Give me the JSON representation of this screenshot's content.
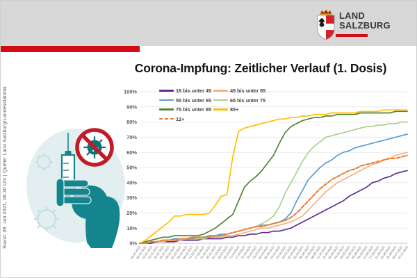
{
  "header": {
    "band_color": "#d7d7d7",
    "brand_red": "#d30b12",
    "logo": {
      "line1": "LAND",
      "line2": "SALZBURG"
    }
  },
  "side_caption": "Stand: 09. Juli 2021, 08.30 Uhr  |  Quelle: Land Salzburg/Landesstatistik",
  "title": "Corona-Impfung: Zeitlicher Verlauf (1. Dosis)",
  "illustration": {
    "description": "hand holding syringe with no-virus prohibition sign",
    "teal": "#15858d",
    "light_teal": "#e2eeef",
    "sign_red": "#c21b26"
  },
  "chart_data": {
    "type": "line",
    "title": "Corona-Impfung: Zeitlicher Verlauf (1. Dosis)",
    "ylabel": "",
    "xlabel": "",
    "ylim": [
      0,
      100
    ],
    "grid": true,
    "legend_position": "top-left-inside",
    "yticks": [
      "0%",
      "10%",
      "20%",
      "30%",
      "40%",
      "50%",
      "60%",
      "70%",
      "80%",
      "90%",
      "100%"
    ],
    "x": [
      "04.01.2021",
      "08.01.2021",
      "12.01.2021",
      "16.01.2021",
      "20.01.2021",
      "24.01.2021",
      "28.01.2021",
      "01.02.2021",
      "05.02.2021",
      "09.02.2021",
      "13.02.2021",
      "17.02.2021",
      "21.02.2021",
      "25.02.2021",
      "01.03.2021",
      "05.03.2021",
      "09.03.2021",
      "13.03.2021",
      "17.03.2021",
      "21.03.2021",
      "25.03.2021",
      "29.03.2021",
      "02.04.2021",
      "06.04.2021",
      "10.04.2021",
      "14.04.2021",
      "18.04.2021",
      "22.04.2021",
      "26.04.2021",
      "30.04.2021",
      "04.05.2021",
      "08.05.2021",
      "12.05.2021",
      "16.05.2021",
      "20.05.2021",
      "24.05.2021",
      "28.05.2021",
      "01.06.2021",
      "05.06.2021",
      "09.06.2021",
      "13.06.2021",
      "17.06.2021",
      "21.06.2021",
      "25.06.2021",
      "29.06.2021",
      "03.07.2021",
      "07.07.2021"
    ],
    "series": [
      {
        "name": "16 bis unter 45",
        "color": "#5e2d91",
        "dash": false,
        "values": [
          0,
          0,
          0,
          1,
          1,
          1,
          1,
          2,
          2,
          2,
          2,
          3,
          3,
          3,
          3,
          4,
          4,
          5,
          5,
          6,
          6,
          7,
          7,
          8,
          8,
          9,
          10,
          12,
          14,
          16,
          18,
          20,
          22,
          24,
          26,
          28,
          31,
          33,
          35,
          37,
          40,
          41,
          43,
          44,
          46,
          47,
          48
        ]
      },
      {
        "name": "45 bis unter 55",
        "color": "#f4b183",
        "dash": false,
        "values": [
          0,
          0,
          1,
          1,
          1,
          2,
          2,
          2,
          3,
          3,
          3,
          3,
          4,
          4,
          4,
          5,
          5,
          6,
          7,
          8,
          9,
          10,
          10,
          11,
          12,
          13,
          14,
          16,
          18,
          22,
          26,
          30,
          34,
          37,
          40,
          42,
          44,
          46,
          48,
          50,
          52,
          53,
          55,
          56,
          58,
          59,
          60
        ]
      },
      {
        "name": "55 bis unter 65",
        "color": "#5b9bd5",
        "dash": false,
        "values": [
          0,
          0,
          1,
          1,
          2,
          2,
          3,
          3,
          3,
          4,
          4,
          4,
          5,
          5,
          6,
          6,
          7,
          8,
          9,
          10,
          11,
          12,
          12,
          13,
          14,
          16,
          20,
          28,
          35,
          42,
          46,
          50,
          53,
          55,
          58,
          60,
          61,
          63,
          64,
          65,
          66,
          67,
          68,
          69,
          70,
          71,
          72
        ]
      },
      {
        "name": "65 bis unter 75",
        "color": "#a9d18e",
        "dash": false,
        "values": [
          0,
          0,
          1,
          1,
          2,
          2,
          2,
          3,
          3,
          3,
          3,
          3,
          4,
          4,
          5,
          6,
          7,
          8,
          9,
          10,
          11,
          13,
          15,
          18,
          24,
          33,
          40,
          47,
          54,
          60,
          64,
          67,
          70,
          71,
          72,
          73,
          74,
          75,
          76,
          77,
          77,
          78,
          78,
          79,
          79,
          80,
          80
        ]
      },
      {
        "name": "75 bis unter 85",
        "color": "#548235",
        "dash": false,
        "values": [
          0,
          1,
          2,
          3,
          4,
          4,
          5,
          5,
          5,
          5,
          5,
          6,
          8,
          10,
          13,
          16,
          19,
          28,
          37,
          41,
          44,
          48,
          53,
          58,
          66,
          73,
          77,
          79,
          81,
          82,
          83,
          83,
          84,
          84,
          85,
          85,
          85,
          85,
          86,
          86,
          86,
          86,
          86,
          86,
          87,
          87,
          87
        ]
      },
      {
        "name": "85+",
        "color": "#ffc000",
        "dash": false,
        "values": [
          0,
          2,
          5,
          8,
          11,
          14,
          18,
          18,
          19,
          19,
          19,
          19,
          20,
          25,
          31,
          32,
          57,
          74,
          76,
          77,
          78,
          79,
          80,
          81,
          82,
          82,
          83,
          83,
          84,
          84,
          85,
          85,
          85,
          86,
          86,
          86,
          86,
          86,
          87,
          87,
          87,
          87,
          88,
          88,
          88,
          88,
          88
        ]
      },
      {
        "name": "12+",
        "color": "#ed7d31",
        "dash": true,
        "values": [
          0,
          0,
          1,
          1,
          2,
          2,
          2,
          3,
          3,
          3,
          4,
          4,
          4,
          5,
          5,
          6,
          7,
          8,
          9,
          10,
          11,
          11,
          12,
          13,
          14,
          15,
          17,
          20,
          24,
          28,
          32,
          36,
          39,
          42,
          44,
          46,
          48,
          49,
          51,
          52,
          53,
          54,
          55,
          56,
          56,
          57,
          58
        ]
      }
    ]
  }
}
